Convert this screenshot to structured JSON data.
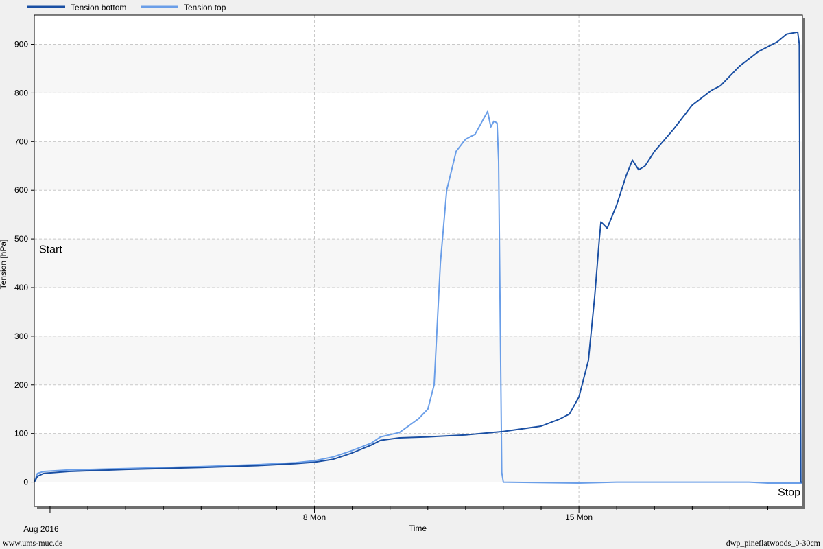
{
  "chart_data": {
    "type": "line",
    "title": "",
    "xlabel": "Time",
    "ylabel": "Tension [hPa]",
    "x_range": [
      "2016-07-31T14:00",
      "2016-08-20T22:00"
    ],
    "ylim": [
      -50,
      960
    ],
    "y_ticks": [
      0,
      100,
      200,
      300,
      400,
      500,
      600,
      700,
      800,
      900
    ],
    "x_ticks": [
      {
        "date": "2016-08-01T00:00",
        "label": "Aug 2016"
      },
      {
        "date": "2016-08-08T00:00",
        "label": "8 Mon"
      },
      {
        "date": "2016-08-15T00:00",
        "label": "15 Mon"
      }
    ],
    "x_minor_ticks": [
      "2016-08-02",
      "2016-08-03",
      "2016-08-04",
      "2016-08-05",
      "2016-08-06",
      "2016-08-07",
      "2016-08-09",
      "2016-08-10",
      "2016-08-11",
      "2016-08-12",
      "2016-08-13",
      "2016-08-14",
      "2016-08-16",
      "2016-08-17",
      "2016-08-18",
      "2016-08-19",
      "2016-08-20"
    ],
    "grid": true,
    "legend_position": "top-left",
    "annotations": [
      {
        "text": "Start",
        "x": "2016-07-31T14:00",
        "y": 480
      },
      {
        "text": "Stop",
        "x": "2016-08-20T22:00",
        "y": -20
      }
    ],
    "series": [
      {
        "name": "Tension bottom",
        "color": "#1a4fa3",
        "points": [
          [
            "2016-07-31T14:00",
            0
          ],
          [
            "2016-07-31T16:00",
            12
          ],
          [
            "2016-07-31T20:00",
            18
          ],
          [
            "2016-08-01T12:00",
            22
          ],
          [
            "2016-08-03T00:00",
            26
          ],
          [
            "2016-08-05T00:00",
            30
          ],
          [
            "2016-08-06T12:00",
            34
          ],
          [
            "2016-08-07T12:00",
            38
          ],
          [
            "2016-08-08T00:00",
            41
          ],
          [
            "2016-08-08T12:00",
            47
          ],
          [
            "2016-08-09T00:00",
            60
          ],
          [
            "2016-08-09T12:00",
            76
          ],
          [
            "2016-08-09T18:00",
            86
          ],
          [
            "2016-08-10T06:00",
            91
          ],
          [
            "2016-08-11T00:00",
            93
          ],
          [
            "2016-08-12T00:00",
            97
          ],
          [
            "2016-08-13T00:00",
            104
          ],
          [
            "2016-08-14T00:00",
            115
          ],
          [
            "2016-08-14T12:00",
            130
          ],
          [
            "2016-08-14T18:00",
            140
          ],
          [
            "2016-08-15T00:00",
            175
          ],
          [
            "2016-08-15T06:00",
            250
          ],
          [
            "2016-08-15T10:00",
            380
          ],
          [
            "2016-08-15T13:00",
            500
          ],
          [
            "2016-08-15T14:00",
            535
          ],
          [
            "2016-08-15T18:00",
            522
          ],
          [
            "2016-08-16T00:00",
            570
          ],
          [
            "2016-08-16T06:00",
            630
          ],
          [
            "2016-08-16T10:00",
            662
          ],
          [
            "2016-08-16T14:00",
            642
          ],
          [
            "2016-08-16T18:00",
            650
          ],
          [
            "2016-08-17T00:00",
            680
          ],
          [
            "2016-08-17T12:00",
            725
          ],
          [
            "2016-08-18T00:00",
            775
          ],
          [
            "2016-08-18T12:00",
            805
          ],
          [
            "2016-08-18T18:00",
            815
          ],
          [
            "2016-08-19T06:00",
            855
          ],
          [
            "2016-08-19T18:00",
            885
          ],
          [
            "2016-08-20T06:00",
            905
          ],
          [
            "2016-08-20T12:00",
            921
          ],
          [
            "2016-08-20T19:00",
            925
          ],
          [
            "2016-08-20T20:00",
            900
          ],
          [
            "2016-08-20T21:00",
            0
          ],
          [
            "2016-08-20T22:00",
            0
          ]
        ]
      },
      {
        "name": "Tension top",
        "color": "#6a9ee8",
        "points": [
          [
            "2016-07-31T14:00",
            0
          ],
          [
            "2016-07-31T16:00",
            18
          ],
          [
            "2016-07-31T20:00",
            22
          ],
          [
            "2016-08-01T12:00",
            25
          ],
          [
            "2016-08-03T00:00",
            28
          ],
          [
            "2016-08-05T00:00",
            32
          ],
          [
            "2016-08-06T12:00",
            36
          ],
          [
            "2016-08-07T12:00",
            40
          ],
          [
            "2016-08-08T00:00",
            44
          ],
          [
            "2016-08-08T12:00",
            52
          ],
          [
            "2016-08-09T00:00",
            65
          ],
          [
            "2016-08-09T12:00",
            80
          ],
          [
            "2016-08-09T18:00",
            93
          ],
          [
            "2016-08-10T06:00",
            102
          ],
          [
            "2016-08-10T18:00",
            130
          ],
          [
            "2016-08-11T00:00",
            150
          ],
          [
            "2016-08-11T04:00",
            200
          ],
          [
            "2016-08-11T08:00",
            450
          ],
          [
            "2016-08-11T12:00",
            600
          ],
          [
            "2016-08-11T18:00",
            680
          ],
          [
            "2016-08-12T00:00",
            705
          ],
          [
            "2016-08-12T06:00",
            715
          ],
          [
            "2016-08-12T14:00",
            762
          ],
          [
            "2016-08-12T16:00",
            730
          ],
          [
            "2016-08-12T18:00",
            742
          ],
          [
            "2016-08-12T20:00",
            738
          ],
          [
            "2016-08-12T21:00",
            660
          ],
          [
            "2016-08-12T23:00",
            20
          ],
          [
            "2016-08-13T00:00",
            0
          ],
          [
            "2016-08-15T00:00",
            -2
          ],
          [
            "2016-08-16T00:00",
            0
          ],
          [
            "2016-08-19T12:00",
            0
          ],
          [
            "2016-08-20T00:00",
            -2
          ],
          [
            "2016-08-20T22:00",
            -2
          ]
        ]
      }
    ]
  },
  "footer": {
    "left": "www.ums-muc.de",
    "right": "dwp_pineflatwoods_0-30cm"
  }
}
